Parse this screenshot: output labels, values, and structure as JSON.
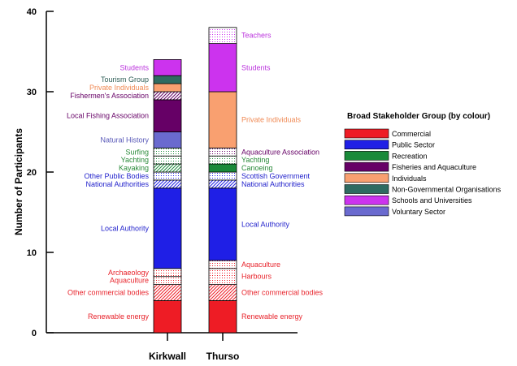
{
  "chart_data": {
    "type": "bar",
    "stacked": true,
    "categories": [
      "Kirkwall",
      "Thurso"
    ],
    "ylabel": "Number of Participants",
    "ylim": [
      0,
      40
    ],
    "yticks": [
      0,
      10,
      20,
      30,
      40
    ],
    "legend": {
      "title": "Broad Stakeholder Group (by colour)",
      "position": "right",
      "entries": [
        {
          "label": "Commercial",
          "color": "#ee1c25"
        },
        {
          "label": "Public Sector",
          "color": "#1f1fe6"
        },
        {
          "label": "Recreation",
          "color": "#1a8a3a"
        },
        {
          "label": "Fisheries and Aquaculture",
          "color": "#660066"
        },
        {
          "label": "Individuals",
          "color": "#f9a070"
        },
        {
          "label": "Non-Governmental Organisations",
          "color": "#2e6b61"
        },
        {
          "label": "Schools and Universities",
          "color": "#cc33ee"
        },
        {
          "label": "Voluntary Sector",
          "color": "#6a6acf"
        }
      ]
    },
    "bars": [
      {
        "category": "Kirkwall",
        "segments": [
          {
            "label": "Renewable energy",
            "value": 4,
            "group": 0,
            "pattern": "solid",
            "label_color": "#e8242c"
          },
          {
            "label": "Other commercial bodies",
            "value": 2,
            "group": 0,
            "pattern": "hatch",
            "label_color": "#e8242c"
          },
          {
            "label": "Aquaculture",
            "value": 1,
            "group": 0,
            "pattern": "dots",
            "label_color": "#e8242c"
          },
          {
            "label": "Archaeology",
            "value": 1,
            "group": 0,
            "pattern": "dots",
            "label_color": "#e8242c"
          },
          {
            "label": "Local Authority",
            "value": 10,
            "group": 1,
            "pattern": "solid",
            "label_color": "#2323cc"
          },
          {
            "label": "National Authorities",
            "value": 1,
            "group": 1,
            "pattern": "hatch",
            "label_color": "#2323cc"
          },
          {
            "label": "Other Public Bodies",
            "value": 1,
            "group": 1,
            "pattern": "dots",
            "label_color": "#2323cc"
          },
          {
            "label": "Kayaking",
            "value": 1,
            "group": 2,
            "pattern": "hatch",
            "label_color": "#2a8a3a"
          },
          {
            "label": "Yachting",
            "value": 1,
            "group": 2,
            "pattern": "dots",
            "label_color": "#2a8a3a"
          },
          {
            "label": "Surfing",
            "value": 1,
            "group": 2,
            "pattern": "dots",
            "label_color": "#2a8a3a"
          },
          {
            "label": "Natural History",
            "value": 2,
            "group": 7,
            "pattern": "solid",
            "label_color": "#5858b8"
          },
          {
            "label": "Local Fishing Association",
            "value": 4,
            "group": 3,
            "pattern": "solid",
            "label_color": "#660066"
          },
          {
            "label": "Fishermen's Association",
            "value": 1,
            "group": 3,
            "pattern": "hatch",
            "label_color": "#660066"
          },
          {
            "label": "Private Individuals",
            "value": 1,
            "group": 4,
            "pattern": "solid",
            "label_color": "#f08a55"
          },
          {
            "label": "Tourism Group",
            "value": 1,
            "group": 5,
            "pattern": "solid",
            "label_color": "#2e5e56"
          },
          {
            "label": "Students",
            "value": 2,
            "group": 6,
            "pattern": "solid",
            "label_color": "#bb33dd"
          }
        ]
      },
      {
        "category": "Thurso",
        "segments": [
          {
            "label": "Renewable energy",
            "value": 4,
            "group": 0,
            "pattern": "solid",
            "label_color": "#e8242c"
          },
          {
            "label": "Other commercial bodies",
            "value": 2,
            "group": 0,
            "pattern": "hatch",
            "label_color": "#e8242c"
          },
          {
            "label": "Harbours",
            "value": 2,
            "group": 0,
            "pattern": "dots",
            "label_color": "#e8242c"
          },
          {
            "label": "Aquaculture",
            "value": 1,
            "group": 0,
            "pattern": "dots",
            "label_color": "#e8242c"
          },
          {
            "label": "Local Authority",
            "value": 9,
            "group": 1,
            "pattern": "solid",
            "label_color": "#2323cc"
          },
          {
            "label": "National Authorities",
            "value": 1,
            "group": 1,
            "pattern": "hatch",
            "label_color": "#2323cc"
          },
          {
            "label": "Scottish Government",
            "value": 1,
            "group": 1,
            "pattern": "dots",
            "label_color": "#2323cc"
          },
          {
            "label": "Canoeing",
            "value": 1,
            "group": 2,
            "pattern": "solid",
            "label_color": "#2a8a3a"
          },
          {
            "label": "Yachting",
            "value": 1,
            "group": 2,
            "pattern": "dots",
            "label_color": "#2a8a3a"
          },
          {
            "label": "Aquaculture Association",
            "value": 1,
            "group": 3,
            "pattern": "dots",
            "label_color": "#660066"
          },
          {
            "label": "Private Individuals",
            "value": 7,
            "group": 4,
            "pattern": "solid",
            "label_color": "#f08a55"
          },
          {
            "label": "Students",
            "value": 6,
            "group": 6,
            "pattern": "solid",
            "label_color": "#bb33dd"
          },
          {
            "label": "Teachers",
            "value": 2,
            "group": 6,
            "pattern": "dots",
            "label_color": "#bb33dd"
          }
        ]
      }
    ]
  }
}
